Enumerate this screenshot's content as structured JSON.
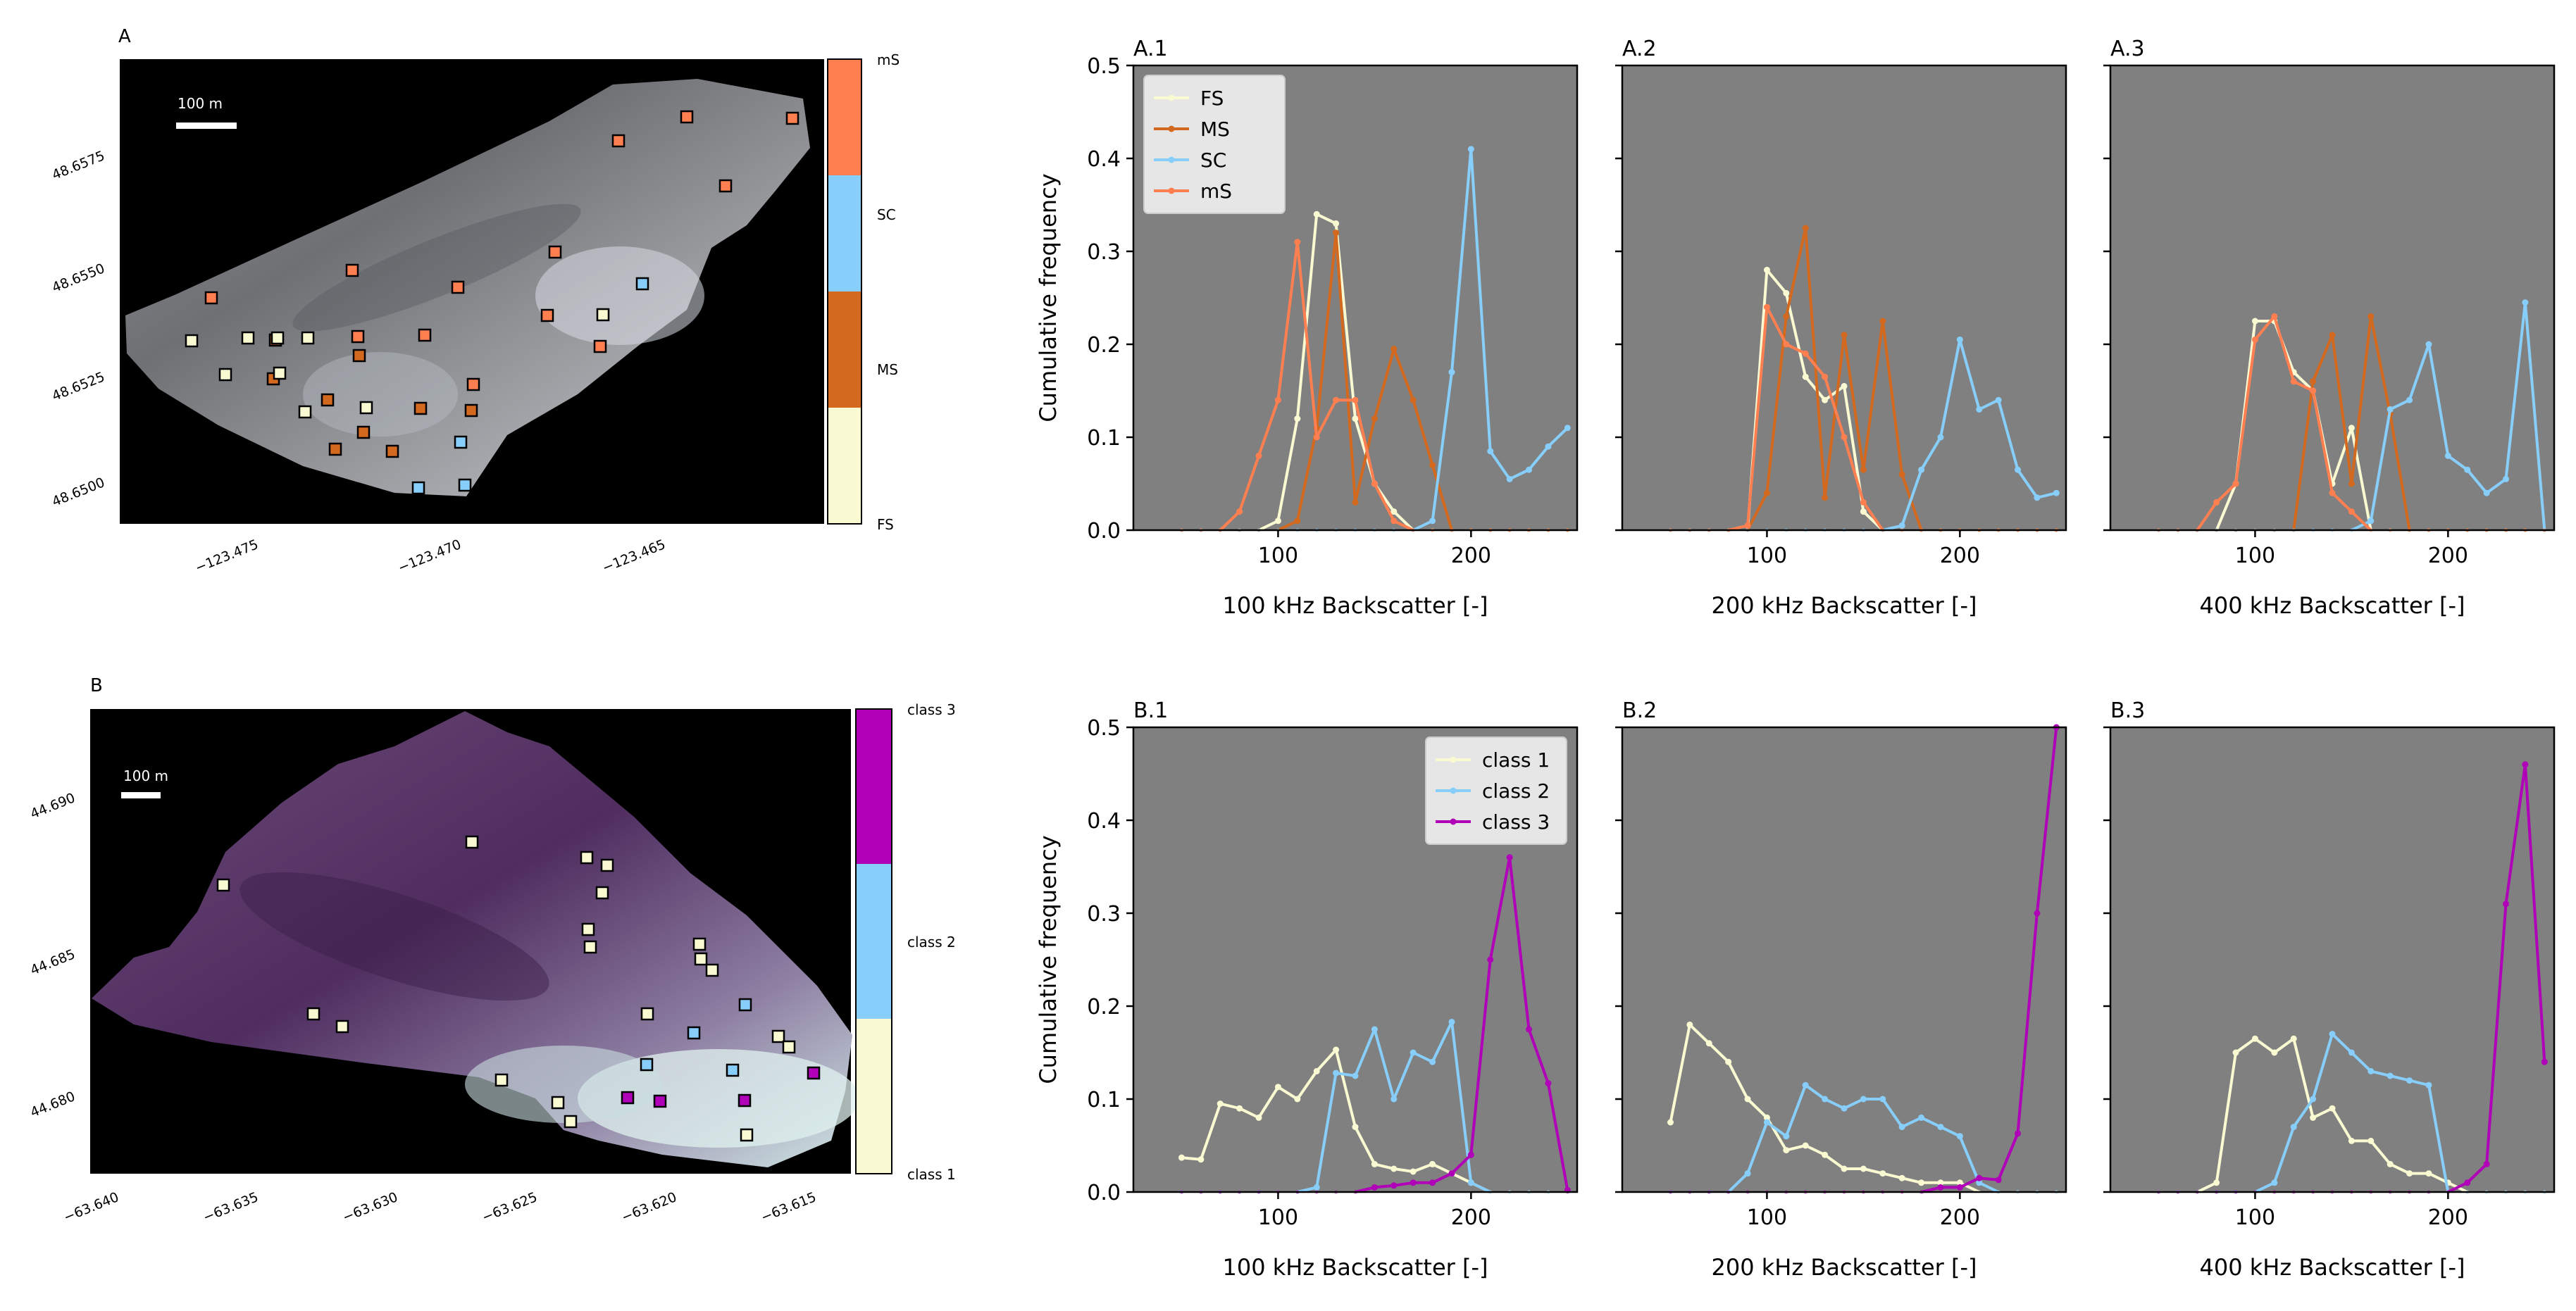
{
  "colors": {
    "plot_bg": "#808080",
    "FS": "#fafad2",
    "MS": "#d2691e",
    "SC": "#87cefa",
    "mS": "#ff7f50",
    "class1": "#fafad2",
    "class2": "#87cefa",
    "class3": "#b000b8"
  },
  "maps": [
    {
      "label": "A",
      "scalebar": "100 m",
      "xticks": [
        "−123.475",
        "−123.470",
        "−123.465"
      ],
      "yticks": [
        "48.6575",
        "48.6550",
        "48.6525",
        "48.6500"
      ],
      "colorbar_labels": [
        "mS",
        "SC",
        "MS",
        "FS"
      ]
    },
    {
      "label": "B",
      "scalebar": "100 m",
      "xticks": [
        "−63.640",
        "−63.635",
        "−63.630",
        "−63.625",
        "−63.620",
        "−63.615"
      ],
      "yticks": [
        "44.690",
        "44.685",
        "44.680"
      ],
      "colorbar_labels": [
        "class 3",
        "class 2",
        "class 1"
      ]
    }
  ],
  "chart_data": [
    {
      "type": "line",
      "title": "A.1",
      "xlabel": "100 kHz Backscatter [-]",
      "ylabel": "Cumulative frequency",
      "xlim": [
        25,
        255
      ],
      "ylim": [
        0,
        0.5
      ],
      "xticks": [
        100,
        200
      ],
      "yticks": [
        0.0,
        0.1,
        0.2,
        0.3,
        0.4,
        0.5
      ],
      "legend": "top-left",
      "x": [
        50,
        60,
        70,
        80,
        90,
        100,
        110,
        120,
        130,
        140,
        150,
        160,
        170,
        180,
        190,
        200,
        210,
        220,
        230,
        240,
        250
      ],
      "series": [
        {
          "name": "FS",
          "color": "#fafad2",
          "values": [
            0,
            0,
            0,
            0,
            0,
            0.01,
            0.12,
            0.34,
            0.33,
            0.12,
            0.05,
            0.02,
            0,
            0,
            0,
            0,
            0,
            0,
            0,
            0,
            0
          ]
        },
        {
          "name": "MS",
          "color": "#d2691e",
          "values": [
            0,
            0,
            0,
            0,
            0,
            0,
            0.01,
            0.11,
            0.32,
            0.03,
            0.12,
            0.195,
            0.14,
            0.07,
            0,
            0,
            0,
            0,
            0,
            0,
            0
          ]
        },
        {
          "name": "SC",
          "color": "#87cefa",
          "values": [
            0,
            0,
            0,
            0,
            0,
            0,
            0,
            0,
            0,
            0,
            0,
            0,
            0,
            0.01,
            0.17,
            0.41,
            0.085,
            0.055,
            0.065,
            0.09,
            0.11
          ]
        },
        {
          "name": "mS",
          "color": "#ff7f50",
          "values": [
            0,
            0,
            0,
            0.02,
            0.08,
            0.14,
            0.31,
            0.1,
            0.14,
            0.14,
            0.05,
            0.01,
            0,
            0,
            0,
            0,
            0,
            0,
            0,
            0,
            0
          ]
        }
      ]
    },
    {
      "type": "line",
      "title": "A.2",
      "xlabel": "200 kHz Backscatter [-]",
      "ylabel": "",
      "xlim": [
        25,
        255
      ],
      "ylim": [
        0,
        0.5
      ],
      "xticks": [
        100,
        200
      ],
      "yticks": [
        0.0,
        0.1,
        0.2,
        0.3,
        0.4,
        0.5
      ],
      "x": [
        50,
        60,
        70,
        80,
        90,
        100,
        110,
        120,
        130,
        140,
        150,
        160,
        170,
        180,
        190,
        200,
        210,
        220,
        230,
        240,
        250
      ],
      "series": [
        {
          "name": "FS",
          "color": "#fafad2",
          "values": [
            0,
            0,
            0,
            0,
            0,
            0.28,
            0.255,
            0.165,
            0.14,
            0.155,
            0.02,
            0,
            0,
            0,
            0,
            0,
            0,
            0,
            0,
            0,
            0
          ]
        },
        {
          "name": "MS",
          "color": "#d2691e",
          "values": [
            0,
            0,
            0,
            0,
            0,
            0.04,
            0.23,
            0.325,
            0.035,
            0.21,
            0.065,
            0.225,
            0.06,
            0,
            0,
            0,
            0,
            0,
            0,
            0,
            0
          ]
        },
        {
          "name": "SC",
          "color": "#87cefa",
          "values": [
            0,
            0,
            0,
            0,
            0,
            0,
            0,
            0,
            0,
            0,
            0,
            0,
            0.005,
            0.065,
            0.1,
            0.205,
            0.13,
            0.14,
            0.065,
            0.035,
            0.04
          ]
        },
        {
          "name": "mS",
          "color": "#ff7f50",
          "values": [
            0,
            0,
            0,
            0,
            0.005,
            0.24,
            0.2,
            0.19,
            0.165,
            0.1,
            0.03,
            0,
            0,
            0,
            0,
            0,
            0,
            0,
            0,
            0,
            0
          ]
        }
      ]
    },
    {
      "type": "line",
      "title": "A.3",
      "xlabel": "400 kHz Backscatter [-]",
      "ylabel": "",
      "xlim": [
        25,
        255
      ],
      "ylim": [
        0,
        0.5
      ],
      "xticks": [
        100,
        200
      ],
      "yticks": [
        0.0,
        0.1,
        0.2,
        0.3,
        0.4,
        0.5
      ],
      "x": [
        50,
        60,
        70,
        80,
        90,
        100,
        110,
        120,
        130,
        140,
        150,
        160,
        170,
        180,
        190,
        200,
        210,
        220,
        230,
        240,
        250
      ],
      "series": [
        {
          "name": "FS",
          "color": "#fafad2",
          "values": [
            0,
            0,
            0,
            0,
            0.05,
            0.225,
            0.225,
            0.17,
            0.15,
            0.05,
            0.11,
            0,
            0,
            0,
            0,
            0,
            0,
            0,
            0,
            0,
            0
          ]
        },
        {
          "name": "MS",
          "color": "#d2691e",
          "values": [
            0,
            0,
            0,
            0,
            0,
            0,
            0,
            0,
            0.16,
            0.21,
            0.05,
            0.23,
            0.125,
            0,
            0,
            0,
            0,
            0,
            0,
            0,
            0
          ]
        },
        {
          "name": "SC",
          "color": "#87cefa",
          "values": [
            0,
            0,
            0,
            0,
            0,
            0,
            0,
            0,
            0,
            0,
            0,
            0.01,
            0.13,
            0.14,
            0.2,
            0.08,
            0.065,
            0.04,
            0.055,
            0.245,
            0
          ]
        },
        {
          "name": "mS",
          "color": "#ff7f50",
          "values": [
            0,
            0,
            0,
            0.03,
            0.05,
            0.205,
            0.23,
            0.16,
            0.15,
            0.04,
            0.02,
            0,
            0,
            0,
            0,
            0,
            0,
            0,
            0,
            0,
            0
          ]
        }
      ]
    },
    {
      "type": "line",
      "title": "B.1",
      "xlabel": "100 kHz Backscatter [-]",
      "ylabel": "Cumulative frequency",
      "xlim": [
        25,
        255
      ],
      "ylim": [
        0,
        0.5
      ],
      "xticks": [
        100,
        200
      ],
      "yticks": [
        0.0,
        0.1,
        0.2,
        0.3,
        0.4,
        0.5
      ],
      "legend": "top-right",
      "x": [
        50,
        60,
        70,
        80,
        90,
        100,
        110,
        120,
        130,
        140,
        150,
        160,
        170,
        180,
        190,
        200,
        210,
        220,
        230,
        240,
        250
      ],
      "series": [
        {
          "name": "class 1",
          "color": "#fafad2",
          "values": [
            0.037,
            0.035,
            0.095,
            0.09,
            0.08,
            0.113,
            0.1,
            0.13,
            0.153,
            0.07,
            0.03,
            0.025,
            0.022,
            0.03,
            0.02,
            0.01,
            0,
            0,
            0,
            0,
            0
          ]
        },
        {
          "name": "class 2",
          "color": "#87cefa",
          "values": [
            0,
            0,
            0,
            0,
            0,
            0,
            0,
            0.005,
            0.128,
            0.125,
            0.175,
            0.1,
            0.15,
            0.14,
            0.183,
            0.01,
            0,
            0,
            0,
            0,
            0
          ]
        },
        {
          "name": "class 3",
          "color": "#b000b8",
          "values": [
            0,
            0,
            0,
            0,
            0,
            0,
            0,
            0,
            0,
            0,
            0.005,
            0.007,
            0.01,
            0.01,
            0.02,
            0.04,
            0.25,
            0.36,
            0.175,
            0.117,
            0.002
          ]
        }
      ]
    },
    {
      "type": "line",
      "title": "B.2",
      "xlabel": "200 kHz Backscatter [-]",
      "ylabel": "",
      "xlim": [
        25,
        255
      ],
      "ylim": [
        0,
        0.5
      ],
      "xticks": [
        100,
        200
      ],
      "yticks": [
        0.0,
        0.1,
        0.2,
        0.3,
        0.4,
        0.5
      ],
      "x": [
        50,
        60,
        70,
        80,
        90,
        100,
        110,
        120,
        130,
        140,
        150,
        160,
        170,
        180,
        190,
        200,
        210,
        220,
        230,
        240,
        250
      ],
      "series": [
        {
          "name": "class 1",
          "color": "#fafad2",
          "values": [
            0.075,
            0.18,
            0.16,
            0.14,
            0.1,
            0.08,
            0.045,
            0.05,
            0.04,
            0.025,
            0.025,
            0.02,
            0.015,
            0.01,
            0.01,
            0.01,
            0,
            0,
            0,
            0,
            0
          ]
        },
        {
          "name": "class 2",
          "color": "#87cefa",
          "values": [
            0,
            0,
            0,
            0,
            0.02,
            0.075,
            0.06,
            0.115,
            0.1,
            0.09,
            0.1,
            0.1,
            0.07,
            0.08,
            0.07,
            0.06,
            0.01,
            0,
            0,
            0,
            0
          ]
        },
        {
          "name": "class 3",
          "color": "#b000b8",
          "values": [
            0,
            0,
            0,
            0,
            0,
            0,
            0,
            0,
            0,
            0,
            0,
            0,
            0,
            0,
            0.005,
            0.005,
            0.015,
            0.013,
            0.063,
            0.3,
            0.5
          ]
        }
      ]
    },
    {
      "type": "line",
      "title": "B.3",
      "xlabel": "400 kHz Backscatter [-]",
      "ylabel": "",
      "xlim": [
        25,
        255
      ],
      "ylim": [
        0,
        0.5
      ],
      "xticks": [
        100,
        200
      ],
      "yticks": [
        0.0,
        0.1,
        0.2,
        0.3,
        0.4,
        0.5
      ],
      "x": [
        50,
        60,
        70,
        80,
        90,
        100,
        110,
        120,
        130,
        140,
        150,
        160,
        170,
        180,
        190,
        200,
        210,
        220,
        230,
        240,
        250
      ],
      "series": [
        {
          "name": "class 1",
          "color": "#fafad2",
          "values": [
            0,
            0,
            0,
            0.01,
            0.15,
            0.165,
            0.15,
            0.165,
            0.08,
            0.09,
            0.055,
            0.055,
            0.03,
            0.02,
            0.02,
            0.01,
            0,
            0,
            0,
            0,
            0
          ]
        },
        {
          "name": "class 2",
          "color": "#87cefa",
          "values": [
            0,
            0,
            0,
            0,
            0,
            0,
            0.01,
            0.07,
            0.1,
            0.17,
            0.15,
            0.13,
            0.125,
            0.12,
            0.115,
            0,
            0,
            0,
            0,
            0,
            0
          ]
        },
        {
          "name": "class 3",
          "color": "#b000b8",
          "values": [
            0,
            0,
            0,
            0,
            0,
            0,
            0,
            0,
            0,
            0,
            0,
            0,
            0,
            0,
            0,
            0,
            0.01,
            0.03,
            0.31,
            0.46,
            0.14
          ]
        }
      ]
    }
  ]
}
